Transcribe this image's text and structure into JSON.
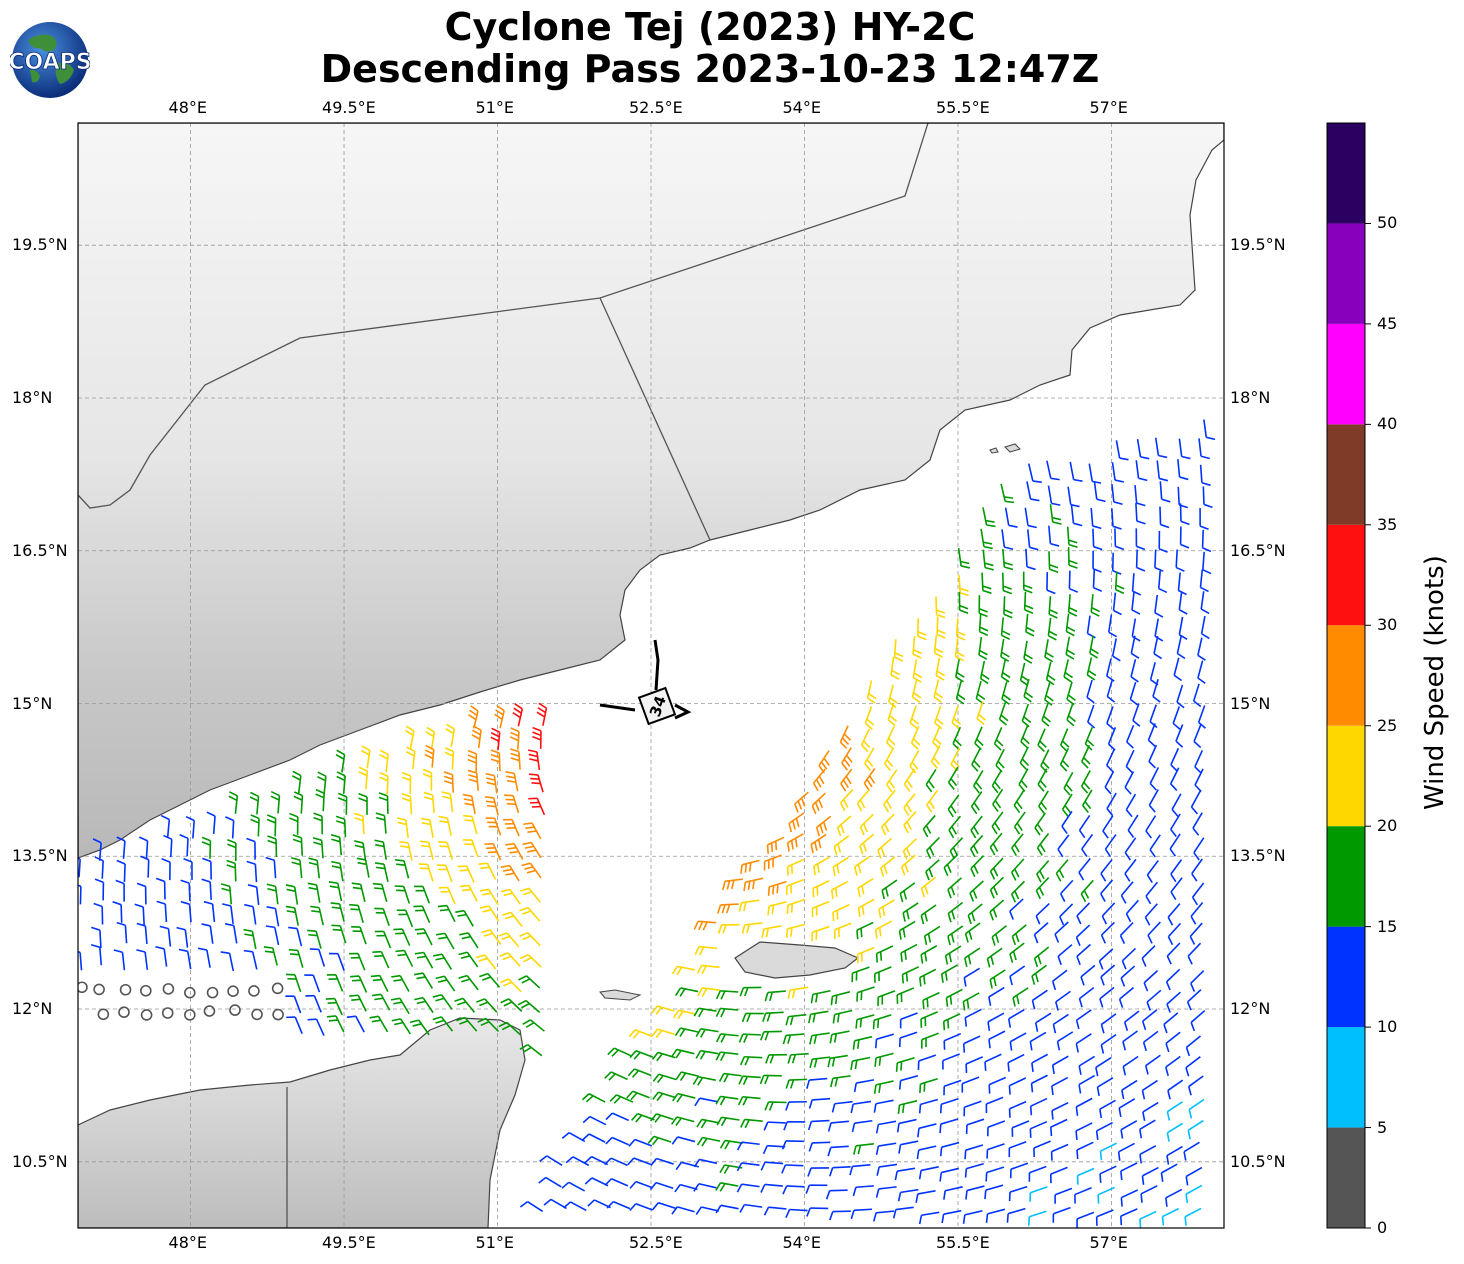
{
  "header": {
    "title_line1": "Cyclone Tej (2023) HY-2C",
    "title_line2": "Descending Pass 2023-10-23 12:47Z",
    "logo_text": "COAPS"
  },
  "map": {
    "lon_labels": [
      "48°E",
      "49.5°E",
      "51°E",
      "52.5°E",
      "54°E",
      "55.5°E",
      "57°E"
    ],
    "lat_labels": [
      "19.5°N",
      "18°N",
      "16.5°N",
      "15°N",
      "13.5°N",
      "12°N",
      "10.5°N"
    ],
    "lon_range": [
      46.9,
      58.1
    ],
    "lat_range": [
      9.85,
      20.7
    ],
    "storm_marker_label": "34",
    "storm_center": {
      "lon": 52.55,
      "lat": 14.95
    },
    "land_color": "#d8d8d8",
    "ocean_color": "#ffffff"
  },
  "colorbar": {
    "title": "Wind Speed (knots)",
    "ticks": [
      "0",
      "5",
      "10",
      "15",
      "20",
      "25",
      "30",
      "35",
      "40",
      "45",
      "50"
    ],
    "colors": [
      "#555555",
      "#00bfff",
      "#0033ff",
      "#009900",
      "#ffd700",
      "#ff8c00",
      "#ff1010",
      "#803a28",
      "#ff00ff",
      "#8800bb",
      "#2a0060"
    ]
  }
}
